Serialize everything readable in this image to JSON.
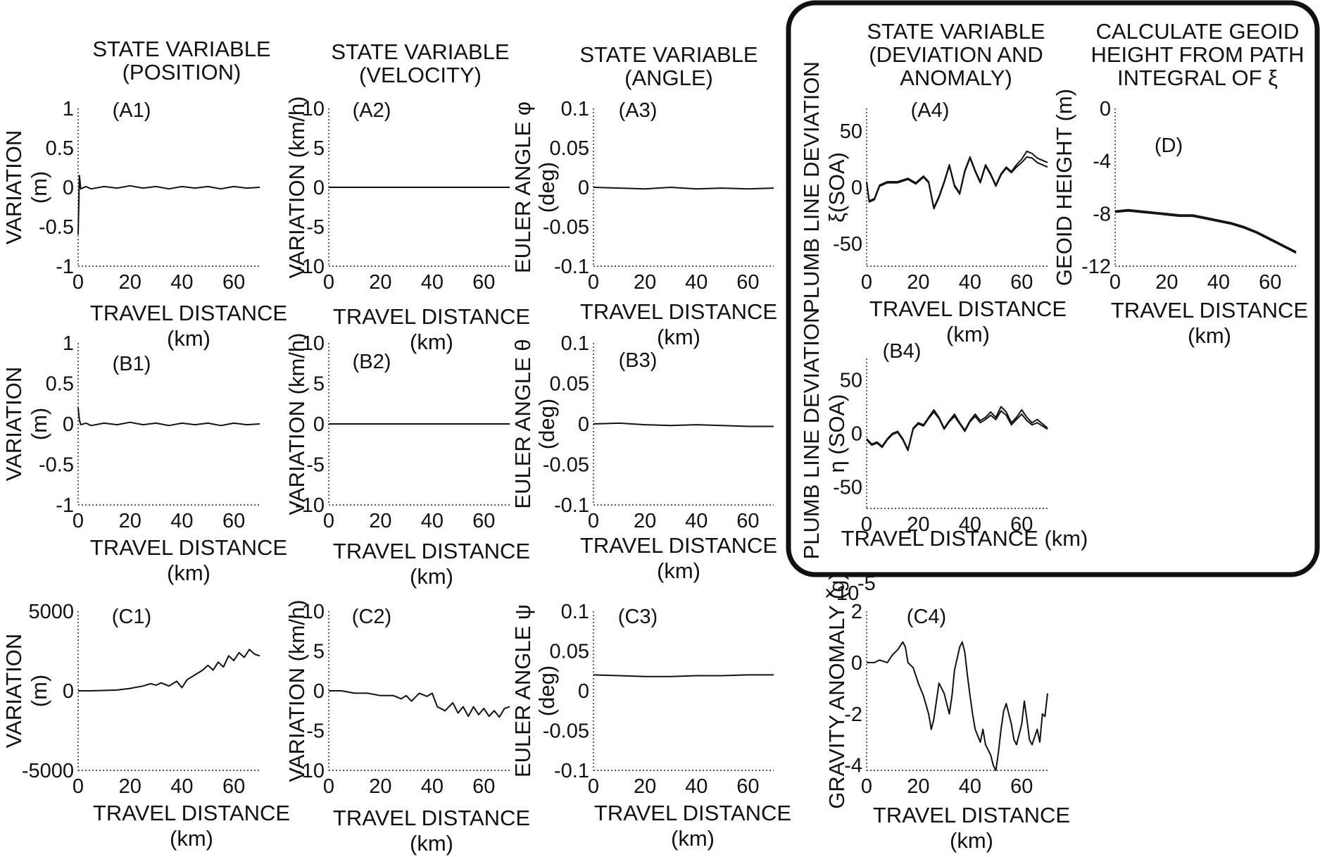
{
  "titles": {
    "position": [
      "STATE VARIABLE",
      "(POSITION)"
    ],
    "velocity": [
      "STATE VARIABLE",
      "(VELOCITY)"
    ],
    "angle": [
      "STATE VARIABLE",
      "(ANGLE)"
    ],
    "deviation": [
      "STATE VARIABLE",
      "(DEVIATION AND",
      "ANOMALY)"
    ],
    "geoid": [
      "CALCULATE GEOID",
      "HEIGHT FROM PATH",
      "INTEGRAL OF ξ"
    ]
  },
  "chart_data": [
    {
      "id": "A1",
      "label": "(A1)",
      "type": "line",
      "xlabel": [
        "TRAVEL DISTANCE",
        "(km)"
      ],
      "ylabel": [
        "VARIATION",
        "(m)"
      ],
      "xlim": [
        0,
        70
      ],
      "ylim": [
        -1,
        1
      ],
      "xticks": [
        "0",
        "20",
        "40",
        "60"
      ],
      "yticks": [
        "-1",
        "-0.5",
        "0",
        "0.5",
        "1"
      ],
      "series": [
        {
          "x": [
            0,
            0.5,
            1,
            3,
            5,
            10,
            15,
            20,
            25,
            30,
            35,
            40,
            45,
            50,
            55,
            60,
            65,
            70
          ],
          "y": [
            -0.6,
            0.15,
            -0.02,
            0.01,
            -0.02,
            0.01,
            -0.01,
            0.02,
            -0.01,
            0.01,
            -0.02,
            0.01,
            -0.01,
            0.01,
            -0.02,
            0.01,
            -0.01,
            0.0
          ]
        }
      ]
    },
    {
      "id": "A2",
      "label": "(A2)",
      "type": "line",
      "xlabel": [
        "TRAVEL DISTANCE",
        "(km)"
      ],
      "ylabel": [
        "VARIATION (km/h)"
      ],
      "xlim": [
        0,
        70
      ],
      "ylim": [
        -10,
        10
      ],
      "xticks": [
        "0",
        "20",
        "40",
        "60"
      ],
      "yticks": [
        "-10",
        "-5",
        "0",
        "5",
        "10"
      ],
      "series": [
        {
          "x": [
            0,
            70
          ],
          "y": [
            0,
            0
          ]
        }
      ]
    },
    {
      "id": "A3",
      "label": "(A3)",
      "type": "line",
      "xlabel": [
        "TRAVEL DISTANCE",
        "(km)"
      ],
      "ylabel": [
        "EULER ANGLE φ",
        "(deg)"
      ],
      "xlim": [
        0,
        70
      ],
      "ylim": [
        -0.1,
        0.1
      ],
      "xticks": [
        "0",
        "20",
        "40",
        "60"
      ],
      "yticks": [
        "-0.1",
        "-0.05",
        "0",
        "0.05",
        "0.1"
      ],
      "series": [
        {
          "x": [
            0,
            10,
            20,
            30,
            40,
            50,
            60,
            70
          ],
          "y": [
            0,
            -0.001,
            -0.002,
            0,
            -0.002,
            -0.001,
            -0.002,
            -0.001
          ]
        }
      ]
    },
    {
      "id": "A4",
      "label": "(A4)",
      "type": "line",
      "xlabel": [
        "TRAVEL DISTANCE",
        "(km)"
      ],
      "ylabel": [
        "PLUMB LINE DEVIATION",
        "ξ(SOA)"
      ],
      "xlim": [
        0,
        70
      ],
      "ylim": [
        -70,
        70
      ],
      "xticks": [
        "0",
        "20",
        "40",
        "60"
      ],
      "yticks": [
        "-50",
        "0",
        "50"
      ],
      "series": [
        {
          "x": [
            0,
            1,
            3,
            5,
            8,
            12,
            16,
            19,
            22,
            24,
            26,
            28,
            30,
            32,
            34,
            36,
            38,
            40,
            42,
            44,
            46,
            48,
            50,
            52,
            54,
            56,
            58,
            60,
            62,
            64,
            66,
            70
          ],
          "y": [
            5,
            -12,
            -10,
            2,
            5,
            5,
            8,
            4,
            10,
            5,
            -18,
            -8,
            5,
            20,
            2,
            -5,
            15,
            27,
            15,
            5,
            20,
            12,
            2,
            12,
            18,
            14,
            20,
            25,
            32,
            30,
            26,
            22
          ]
        },
        {
          "x": [
            0,
            1,
            3,
            5,
            8,
            12,
            16,
            19,
            22,
            24,
            26,
            28,
            30,
            32,
            34,
            36,
            38,
            40,
            42,
            44,
            46,
            48,
            50,
            52,
            54,
            56,
            58,
            60,
            62,
            64,
            66,
            70
          ],
          "y": [
            4,
            -13,
            -11,
            1,
            4,
            4,
            7,
            3,
            9,
            4,
            -19,
            -9,
            4,
            19,
            1,
            -6,
            14,
            26,
            14,
            4,
            19,
            11,
            1,
            11,
            17,
            13,
            18,
            22,
            27,
            26,
            22,
            18
          ]
        }
      ]
    },
    {
      "id": "D",
      "label": "(D)",
      "type": "line",
      "xlabel": [
        "TRAVEL DISTANCE",
        "(km)"
      ],
      "ylabel": [
        "GEOID HEIGHT (m)"
      ],
      "xlim": [
        0,
        70
      ],
      "ylim": [
        -12,
        0
      ],
      "xticks": [
        "0",
        "20",
        "40",
        "60"
      ],
      "yticks": [
        "-12",
        "-8",
        "-4",
        "0"
      ],
      "series": [
        {
          "x": [
            0,
            5,
            10,
            15,
            20,
            25,
            30,
            35,
            40,
            45,
            50,
            55,
            60,
            65,
            70
          ],
          "y": [
            -7.9,
            -7.8,
            -7.9,
            -8.0,
            -8.1,
            -8.2,
            -8.2,
            -8.4,
            -8.6,
            -8.8,
            -9.1,
            -9.5,
            -10.0,
            -10.5,
            -11.0
          ]
        },
        {
          "x": [
            0,
            5,
            10,
            15,
            20,
            25,
            30,
            35,
            40,
            45,
            50,
            55,
            60,
            65,
            70
          ],
          "y": [
            -7.8,
            -7.7,
            -7.8,
            -7.9,
            -8.0,
            -8.1,
            -8.1,
            -8.3,
            -8.5,
            -8.7,
            -9.0,
            -9.4,
            -9.9,
            -10.4,
            -10.9
          ]
        }
      ]
    },
    {
      "id": "B1",
      "label": "(B1)",
      "type": "line",
      "xlabel": [
        "TRAVEL DISTANCE",
        "(km)"
      ],
      "ylabel": [
        "VARIATION",
        "(m)"
      ],
      "xlim": [
        0,
        70
      ],
      "ylim": [
        -1,
        1
      ],
      "xticks": [
        "0",
        "20",
        "40",
        "60"
      ],
      "yticks": [
        "-1",
        "-0.5",
        "0",
        "0.5",
        "1"
      ],
      "series": [
        {
          "x": [
            0,
            0.5,
            1,
            3,
            5,
            10,
            15,
            20,
            25,
            30,
            35,
            40,
            45,
            50,
            55,
            60,
            65,
            70
          ],
          "y": [
            0.2,
            0.05,
            -0.01,
            0.01,
            -0.02,
            0.01,
            -0.01,
            0.02,
            -0.01,
            0.01,
            -0.02,
            0.01,
            -0.01,
            0.01,
            -0.02,
            0.01,
            -0.01,
            0.0
          ]
        }
      ]
    },
    {
      "id": "B2",
      "label": "(B2)",
      "type": "line",
      "xlabel": [
        "TRAVEL DISTANCE",
        "(km)"
      ],
      "ylabel": [
        "VARIATION (km/h)"
      ],
      "xlim": [
        0,
        70
      ],
      "ylim": [
        -10,
        10
      ],
      "xticks": [
        "0",
        "20",
        "40",
        "60"
      ],
      "yticks": [
        "-10",
        "-5",
        "0",
        "5",
        "10"
      ],
      "series": [
        {
          "x": [
            0,
            70
          ],
          "y": [
            0,
            0
          ]
        }
      ]
    },
    {
      "id": "B3",
      "label": "(B3)",
      "type": "line",
      "xlabel": [
        "TRAVEL DISTANCE",
        "(km)"
      ],
      "ylabel": [
        "EULER ANGLE θ",
        "(deg)"
      ],
      "xlim": [
        0,
        70
      ],
      "ylim": [
        -0.1,
        0.1
      ],
      "xticks": [
        "0",
        "20",
        "40",
        "60"
      ],
      "yticks": [
        "-0.1",
        "-0.05",
        "0",
        "0.05",
        "0.1"
      ],
      "series": [
        {
          "x": [
            0,
            10,
            20,
            30,
            40,
            50,
            60,
            70
          ],
          "y": [
            0,
            0.001,
            -0.001,
            -0.002,
            -0.001,
            -0.002,
            -0.003,
            -0.003
          ]
        }
      ]
    },
    {
      "id": "B4",
      "label": "(B4)",
      "type": "line",
      "xlabel": [
        "TRAVEL DISTANCE (km)"
      ],
      "ylabel": [
        "PLUMB LINE DEVIATION",
        "η (SOA)"
      ],
      "xlim": [
        0,
        70
      ],
      "ylim": [
        -70,
        70
      ],
      "xticks": [
        "0",
        "20",
        "40",
        "60"
      ],
      "yticks": [
        "-50",
        "0",
        "50"
      ],
      "series": [
        {
          "x": [
            0,
            2,
            4,
            6,
            8,
            10,
            12,
            14,
            16,
            18,
            20,
            22,
            24,
            26,
            28,
            30,
            32,
            34,
            36,
            38,
            40,
            42,
            44,
            46,
            48,
            50,
            52,
            54,
            56,
            58,
            60,
            62,
            64,
            66,
            70
          ],
          "y": [
            -5,
            -10,
            -8,
            -12,
            -5,
            0,
            2,
            -5,
            -15,
            5,
            10,
            8,
            15,
            22,
            15,
            5,
            12,
            18,
            10,
            3,
            12,
            18,
            12,
            15,
            20,
            15,
            25,
            20,
            10,
            15,
            22,
            15,
            10,
            13,
            5
          ]
        },
        {
          "x": [
            0,
            2,
            4,
            6,
            8,
            10,
            12,
            14,
            16,
            18,
            20,
            22,
            24,
            26,
            28,
            30,
            32,
            34,
            36,
            38,
            40,
            42,
            44,
            46,
            48,
            50,
            52,
            54,
            56,
            58,
            60,
            62,
            64,
            66,
            70
          ],
          "y": [
            -6,
            -11,
            -9,
            -13,
            -6,
            -1,
            1,
            -6,
            -16,
            4,
            9,
            7,
            14,
            20,
            14,
            4,
            11,
            16,
            9,
            2,
            11,
            16,
            10,
            13,
            17,
            13,
            21,
            17,
            8,
            13,
            18,
            12,
            8,
            10,
            4
          ]
        }
      ]
    },
    {
      "id": "C1",
      "label": "(C1)",
      "type": "line",
      "xlabel": [
        "TRAVEL DISTANCE",
        "(km)"
      ],
      "ylabel": [
        "VARIATION",
        "(m)"
      ],
      "xlim": [
        0,
        70
      ],
      "ylim": [
        -5000,
        5000
      ],
      "xticks": [
        "0",
        "20",
        "40",
        "60"
      ],
      "yticks": [
        "-5000",
        "0",
        "5000"
      ],
      "series": [
        {
          "x": [
            0,
            5,
            10,
            15,
            20,
            25,
            28,
            30,
            32,
            35,
            38,
            40,
            42,
            45,
            48,
            50,
            52,
            54,
            56,
            58,
            60,
            62,
            64,
            66,
            68,
            70
          ],
          "y": [
            0,
            0,
            20,
            50,
            150,
            300,
            450,
            350,
            500,
            300,
            600,
            200,
            700,
            1000,
            1300,
            1600,
            1300,
            1800,
            1500,
            2200,
            1900,
            2400,
            2100,
            2600,
            2300,
            2200
          ]
        }
      ]
    },
    {
      "id": "C2",
      "label": "(C2)",
      "type": "line",
      "xlabel": [
        "TRAVEL DISTANCE",
        "(km)"
      ],
      "ylabel": [
        "VARIATION (km/h)"
      ],
      "xlim": [
        0,
        70
      ],
      "ylim": [
        -10,
        10
      ],
      "xticks": [
        "0",
        "20",
        "40",
        "60"
      ],
      "yticks": [
        "-10",
        "-5",
        "0",
        "5",
        "10"
      ],
      "series": [
        {
          "x": [
            0,
            5,
            10,
            15,
            20,
            25,
            28,
            30,
            32,
            35,
            38,
            40,
            42,
            45,
            48,
            50,
            52,
            54,
            56,
            58,
            60,
            62,
            64,
            66,
            68,
            70
          ],
          "y": [
            0,
            0,
            -0.3,
            -0.3,
            -0.6,
            -0.6,
            -1.0,
            -0.6,
            -1.3,
            -0.3,
            -0.7,
            -0.3,
            -2.0,
            -2.5,
            -1.5,
            -2.8,
            -2.0,
            -3.2,
            -2.0,
            -3.0,
            -2.2,
            -3.2,
            -2.5,
            -3.3,
            -2.2,
            -2.0
          ]
        }
      ]
    },
    {
      "id": "C3",
      "label": "(C3)",
      "type": "line",
      "xlabel": [
        "TRAVEL DISTANCE",
        "(km)"
      ],
      "ylabel": [
        "EULER ANGLE ψ",
        "(deg)"
      ],
      "xlim": [
        0,
        70
      ],
      "ylim": [
        -0.1,
        0.1
      ],
      "xticks": [
        "0",
        "20",
        "40",
        "60"
      ],
      "yticks": [
        "-0.1",
        "-0.05",
        "0",
        "0.05",
        "0.1"
      ],
      "series": [
        {
          "x": [
            0,
            10,
            20,
            30,
            40,
            50,
            60,
            70
          ],
          "y": [
            0.02,
            0.019,
            0.018,
            0.018,
            0.019,
            0.019,
            0.02,
            0.02
          ]
        }
      ]
    },
    {
      "id": "C4",
      "label": "(C4)",
      "type": "line",
      "xlabel": [
        "TRAVEL DISTANCE",
        "(km)"
      ],
      "ylabel": [
        "GRAVITY ANOMALY (g)"
      ],
      "xlim": [
        0,
        70
      ],
      "ylim": [
        -4.2,
        2
      ],
      "xticks": [
        "0",
        "20",
        "40",
        "60"
      ],
      "yticks": [
        "-4",
        "-2",
        "0",
        "2"
      ],
      "multiplier": "×10",
      "multiplier_exp": "-5",
      "series": [
        {
          "x": [
            0,
            3,
            5,
            8,
            10,
            12,
            14,
            15,
            16,
            18,
            20,
            22,
            24,
            25,
            26,
            27,
            28,
            30,
            32,
            33,
            34,
            36,
            37,
            38,
            39,
            40,
            41,
            42,
            44,
            45,
            46,
            48,
            49,
            50,
            51,
            52,
            53,
            54,
            56,
            57,
            58,
            60,
            61,
            62,
            63,
            64,
            66,
            67,
            68,
            69,
            70
          ],
          "y": [
            0,
            0,
            0.1,
            0,
            0.3,
            0.5,
            0.8,
            0.6,
            0,
            -0.2,
            -0.8,
            -1.3,
            -2.0,
            -2.6,
            -2.2,
            -1.5,
            -0.8,
            -1.2,
            -2.0,
            -1.3,
            -0.3,
            0.6,
            0.8,
            0.4,
            -0.5,
            -1.3,
            -2.0,
            -2.6,
            -3.1,
            -2.6,
            -3.2,
            -3.6,
            -4.0,
            -4.2,
            -3.5,
            -2.6,
            -1.9,
            -1.6,
            -2.4,
            -3.0,
            -3.2,
            -2.4,
            -1.5,
            -2.2,
            -3.0,
            -3.2,
            -2.6,
            -3.1,
            -2.0,
            -2.1,
            -1.2
          ]
        }
      ]
    }
  ]
}
